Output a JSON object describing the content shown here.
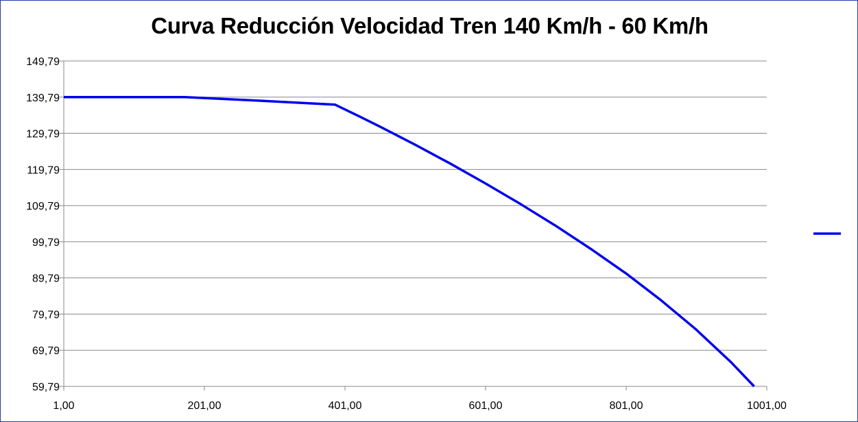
{
  "chart_data": {
    "type": "line",
    "title": "Curva Reducción Velocidad Tren  140 Km/h - 60 Km/h",
    "xlabel": "",
    "ylabel": "",
    "xlim": [
      1,
      1001
    ],
    "ylim": [
      59.79,
      149.79
    ],
    "x_ticks": [
      "1,00",
      "201,00",
      "401,00",
      "601,00",
      "801,00",
      "1001,00"
    ],
    "y_ticks": [
      "59,79",
      "69,79",
      "79,79",
      "89,79",
      "99,79",
      "109,79",
      "119,79",
      "129,79",
      "139,79",
      "149,79"
    ],
    "grid": "horizontal",
    "legend": "right",
    "series": [
      {
        "color": "#0000ee",
        "x": [
          1,
          173,
          280,
          387,
          420,
          450,
          500,
          550,
          601,
          650,
          700,
          750,
          801,
          850,
          900,
          950,
          983
        ],
        "y": [
          139.79,
          139.79,
          138.8,
          137.7,
          134.6,
          131.7,
          126.7,
          121.5,
          115.9,
          110.3,
          104.3,
          97.9,
          91.0,
          83.7,
          75.6,
          66.5,
          59.79
        ]
      }
    ]
  }
}
